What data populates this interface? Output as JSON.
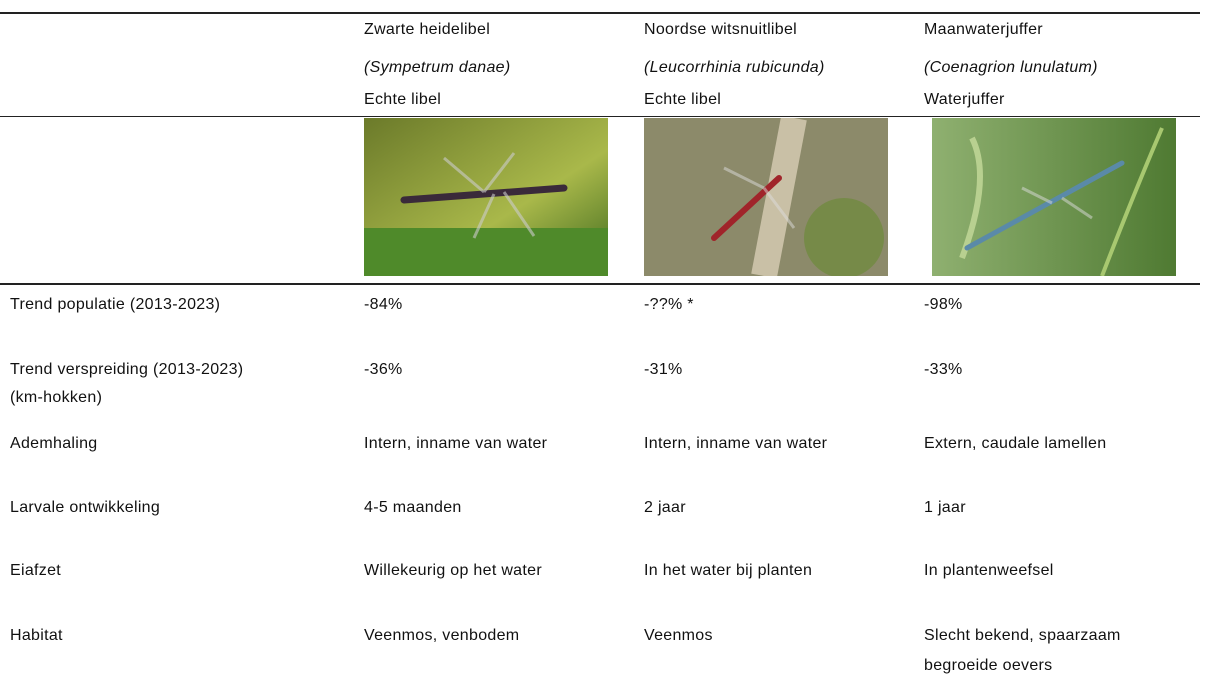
{
  "columns": [
    {
      "name": "Zwarte heidelibel",
      "latin": "(Sympetrum danae)",
      "type": "Echte libel"
    },
    {
      "name": "Noordse witsnuitlibel",
      "latin": "(Leucorrhinia rubicunda)",
      "type": "Echte libel"
    },
    {
      "name": "Maanwaterjuffer",
      "latin": "(Coenagrion lunulatum)",
      "type": "Waterjuffer"
    }
  ],
  "rows": [
    {
      "label": [
        "Trend populatie (2013-2023)"
      ],
      "cells": [
        [
          "-84%"
        ],
        [
          "-??% *"
        ],
        [
          "-98%"
        ]
      ]
    },
    {
      "label": [
        "Trend verspreiding (2013-2023)",
        "(km-hokken)"
      ],
      "cells": [
        [
          "-36%"
        ],
        [
          "-31%"
        ],
        [
          "-33%"
        ]
      ]
    },
    {
      "label": [
        "Ademhaling"
      ],
      "cells": [
        [
          "Intern, inname van water"
        ],
        [
          "Intern, inname van water"
        ],
        [
          "Extern, caudale lamellen"
        ]
      ]
    },
    {
      "label": [
        "Larvale ontwikkeling"
      ],
      "cells": [
        [
          "4-5 maanden"
        ],
        [
          "2 jaar"
        ],
        [
          "1 jaar"
        ]
      ]
    },
    {
      "label": [
        "Eiafzet"
      ],
      "cells": [
        [
          "Willekeurig op het water"
        ],
        [
          "In het water bij planten"
        ],
        [
          "In plantenweefsel"
        ]
      ]
    },
    {
      "label": [
        "Habitat"
      ],
      "cells": [
        [
          "Veenmos, venbodem"
        ],
        [
          "Veenmos"
        ],
        [
          "Slecht bekend, spaarzaam",
          "begroeide oevers"
        ]
      ]
    }
  ]
}
